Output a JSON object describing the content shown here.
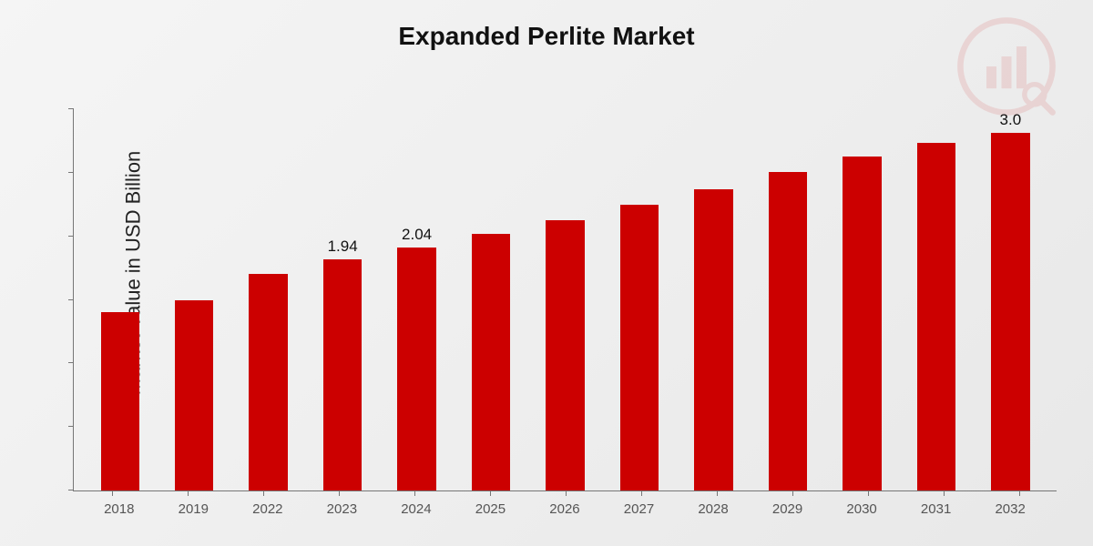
{
  "chart": {
    "type": "bar",
    "title": "Expanded Perlite Market",
    "ylabel": "Market Value in USD Billion",
    "categories": [
      "2018",
      "2019",
      "2022",
      "2023",
      "2024",
      "2025",
      "2026",
      "2027",
      "2028",
      "2029",
      "2030",
      "2031",
      "2032"
    ],
    "values": [
      1.5,
      1.6,
      1.82,
      1.94,
      2.04,
      2.15,
      2.27,
      2.4,
      2.53,
      2.67,
      2.8,
      2.92,
      3.0
    ],
    "value_labels": [
      "",
      "",
      "",
      "1.94",
      "2.04",
      "",
      "",
      "",
      "",
      "",
      "",
      "",
      "3.0"
    ],
    "bar_color": "#cc0000",
    "ylim": [
      0,
      3.2
    ],
    "yticks_count": 7,
    "axis_color": "#767676",
    "background_gradient": [
      "#f5f5f5",
      "#e8e8e8"
    ],
    "title_fontsize": 28,
    "ylabel_fontsize": 22,
    "xlabel_fontsize": 15,
    "value_label_fontsize": 17,
    "bar_width_ratio": 0.52,
    "watermark_color": "#cc0000"
  }
}
